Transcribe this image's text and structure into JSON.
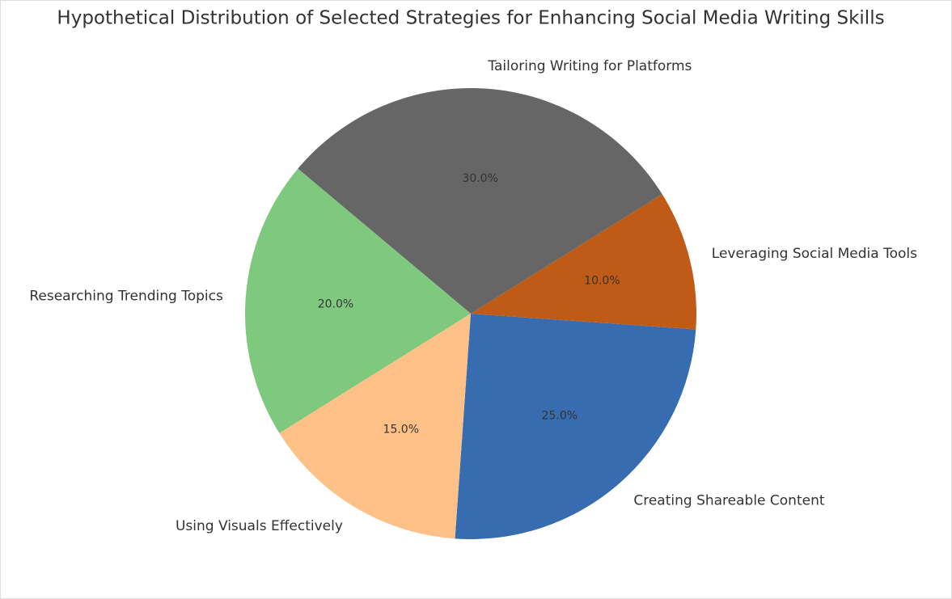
{
  "chart_data": {
    "type": "pie",
    "title": "Hypothetical Distribution of Selected Strategies for Enhancing Social Media Writing Skills",
    "categories": [
      "Creating Shareable Content",
      "Leveraging Social Media Tools",
      "Tailoring Writing for Platforms",
      "Researching Trending Topics",
      "Using Visuals Effectively"
    ],
    "values": [
      25,
      10,
      30,
      20,
      15
    ],
    "value_labels": [
      "25.0%",
      "10.0%",
      "30.0%",
      "20.0%",
      "15.0%"
    ],
    "colors": [
      "#386cb0",
      "#bf5b17",
      "#666666",
      "#7fc97f",
      "#fdc086"
    ]
  }
}
